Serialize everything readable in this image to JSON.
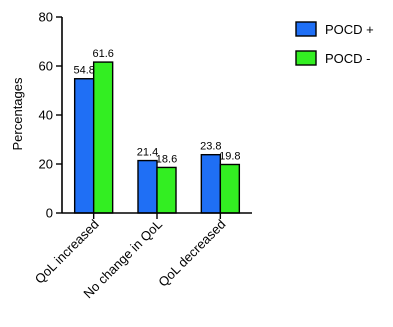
{
  "chart_data": {
    "type": "bar",
    "categories": [
      "QoL increased",
      "No change in QoL",
      "QoL decreased"
    ],
    "series": [
      {
        "name": "POCD +",
        "values": [
          54.8,
          21.4,
          23.8
        ],
        "color": "#1f6ff5"
      },
      {
        "name": "POCD -",
        "values": [
          61.6,
          18.6,
          19.8
        ],
        "color": "#33ee22"
      }
    ],
    "data_labels": [
      [
        "54.8",
        "21.4",
        "23.8"
      ],
      [
        "61.6",
        "18.6",
        "19.8"
      ]
    ],
    "yticks": [
      0,
      20,
      40,
      60,
      80
    ],
    "ylabel": "Percentages",
    "xlabel": "",
    "ylim": [
      0,
      80
    ],
    "legend_position": "top-right",
    "grid": false
  }
}
